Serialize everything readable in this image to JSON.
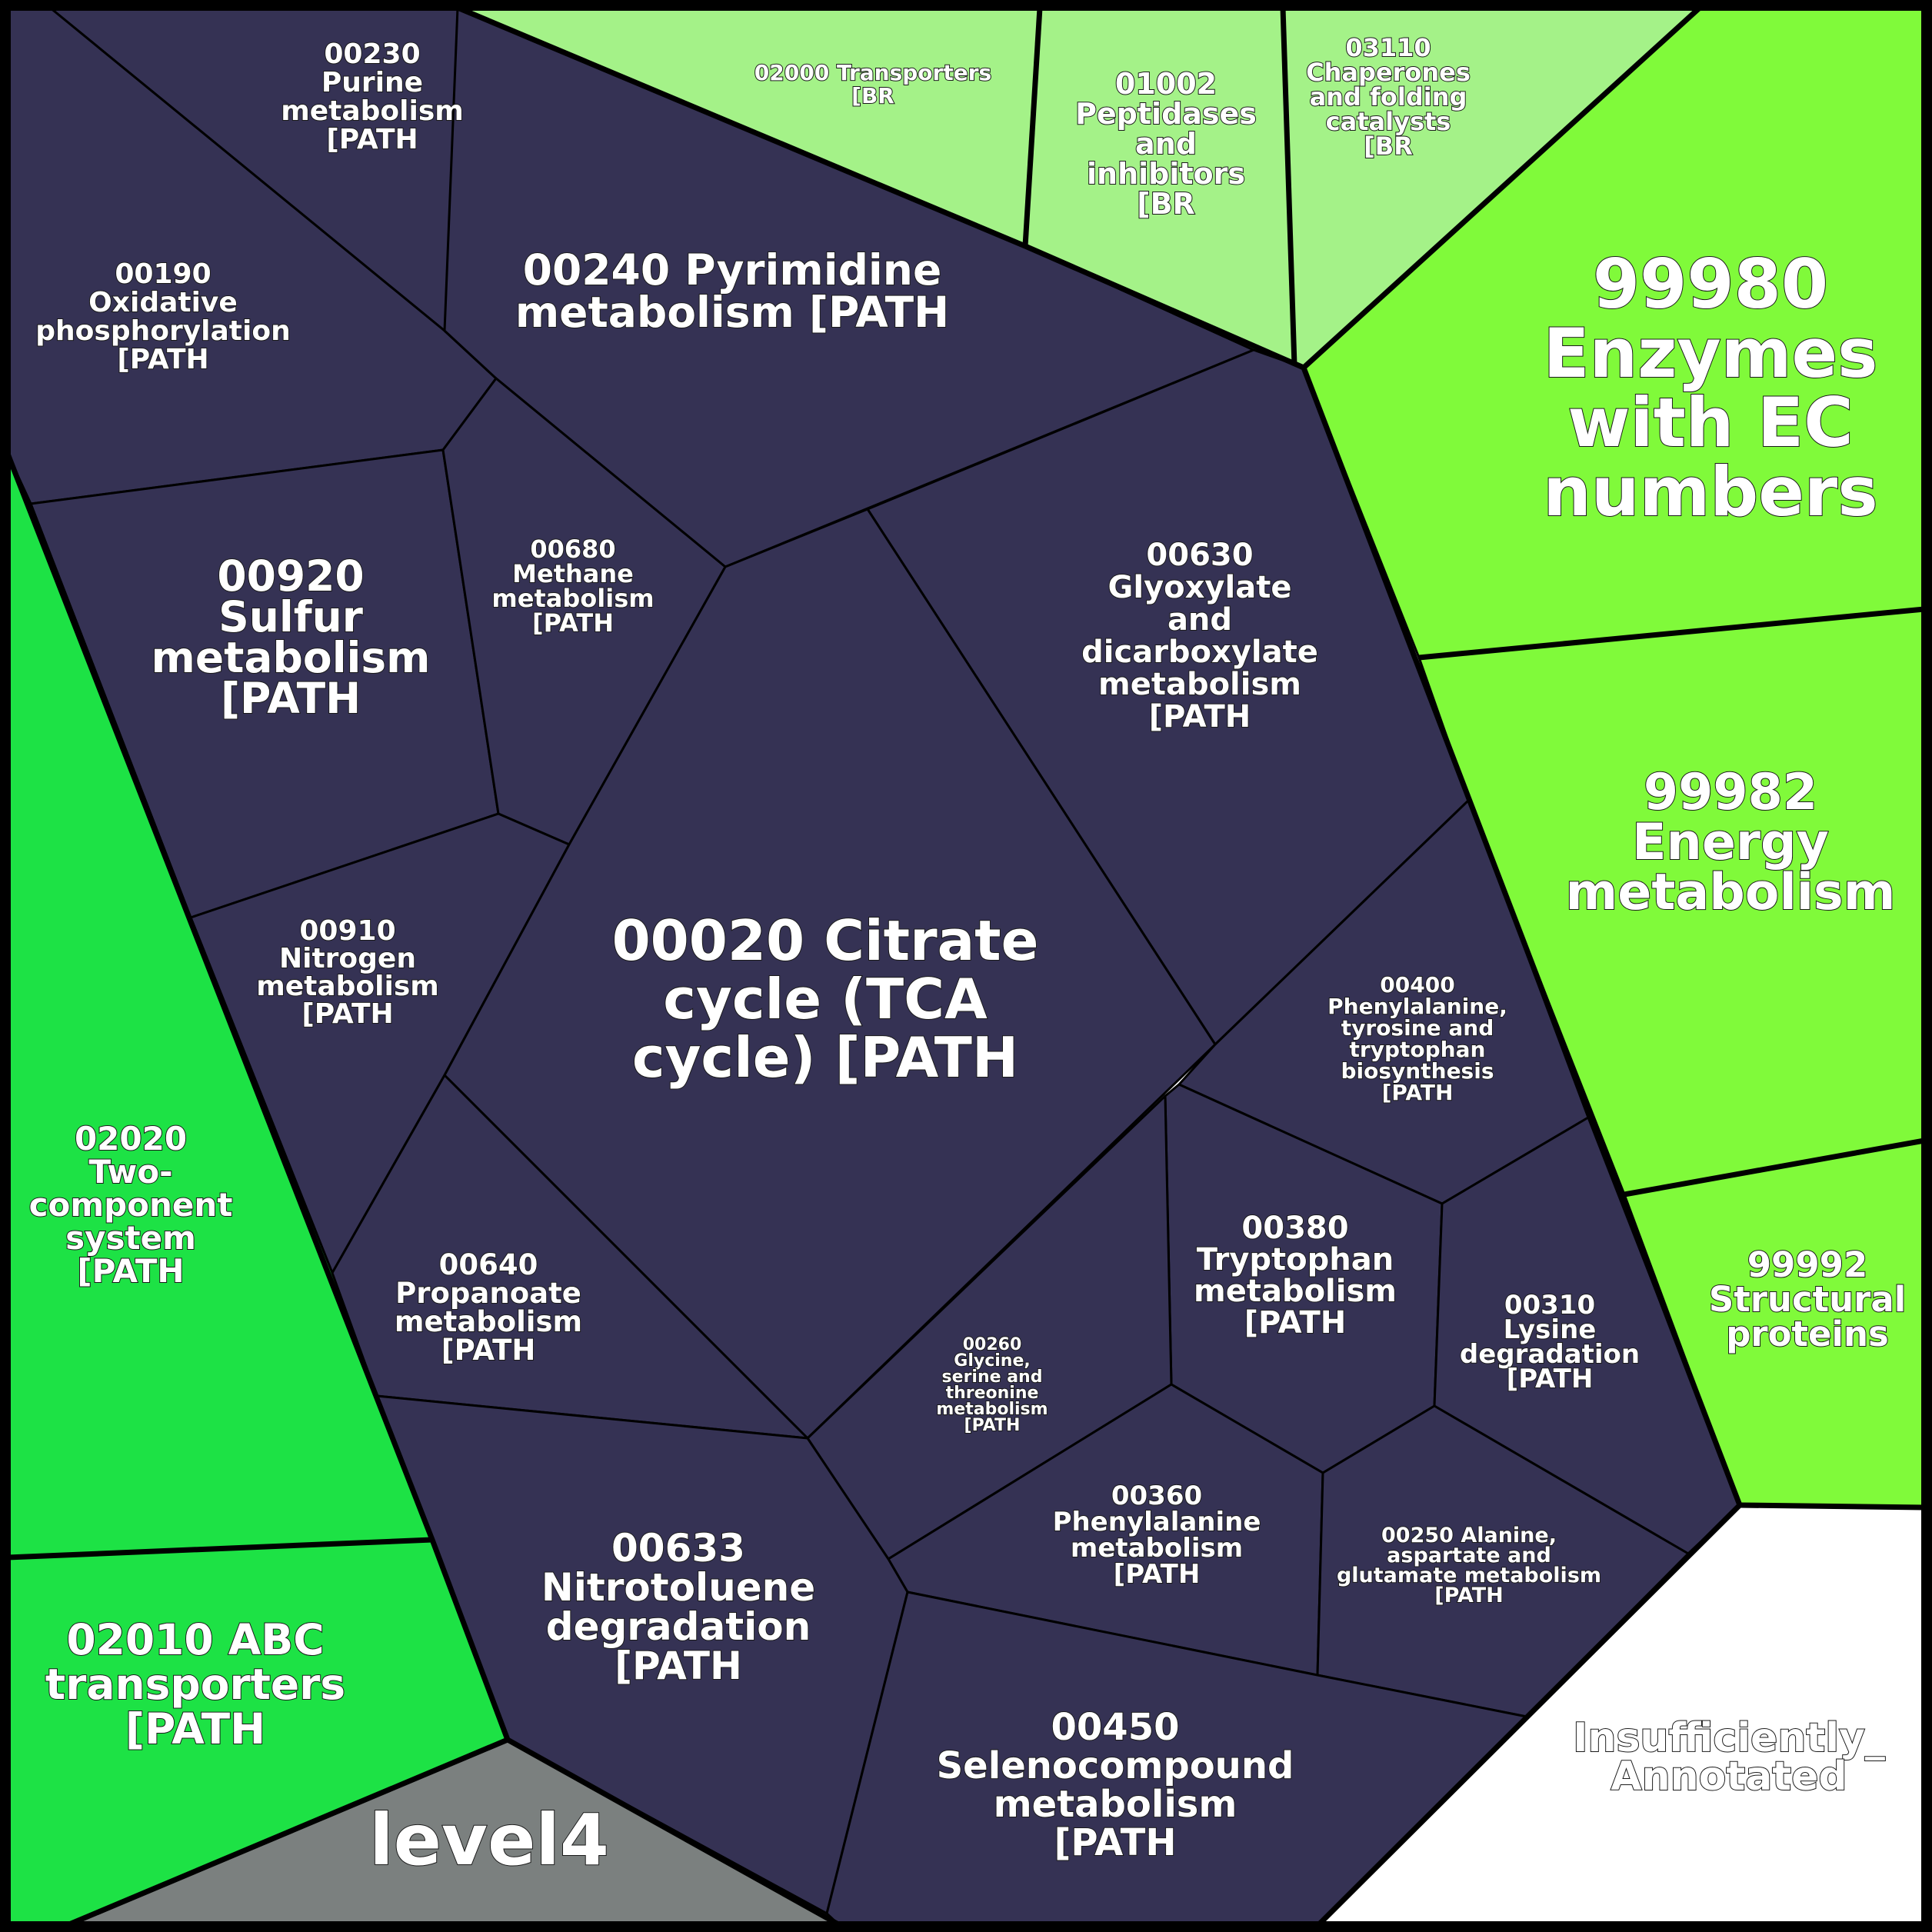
{
  "colors": {
    "pathway": "#353254",
    "brite_light": "#a4f288",
    "enzyme_green": "#80fa3a",
    "bright_green": "#1de245",
    "level4_gray": "#7b807f",
    "unannotated": "#ffffff"
  },
  "cells": [
    {
      "id": "c00230",
      "color": "pathway",
      "lines": [
        "00230",
        "Purine",
        "metabolism",
        "[PATH"
      ]
    },
    {
      "id": "c00190",
      "color": "pathway",
      "lines": [
        "00190",
        "Oxidative",
        "phosphorylation",
        "[PATH"
      ]
    },
    {
      "id": "c00240",
      "color": "pathway",
      "lines": [
        "00240 Pyrimidine",
        "metabolism [PATH"
      ]
    },
    {
      "id": "c02000",
      "color": "brite_light",
      "lines": [
        "02000 Transporters",
        "[BR"
      ]
    },
    {
      "id": "c01002",
      "color": "brite_light",
      "lines": [
        "01002",
        "Peptidases",
        "and",
        "inhibitors",
        "[BR"
      ]
    },
    {
      "id": "c03110",
      "color": "brite_light",
      "lines": [
        "03110",
        "Chaperones",
        "and folding",
        "catalysts",
        "[BR"
      ]
    },
    {
      "id": "c99980",
      "color": "enzyme_green",
      "lines": [
        "99980",
        "Enzymes",
        "with EC",
        "numbers"
      ]
    },
    {
      "id": "c00920",
      "color": "pathway",
      "lines": [
        "00920",
        "Sulfur",
        "metabolism",
        "[PATH"
      ]
    },
    {
      "id": "c00680",
      "color": "pathway",
      "lines": [
        "00680",
        "Methane",
        "metabolism",
        "[PATH"
      ]
    },
    {
      "id": "c00630",
      "color": "pathway",
      "lines": [
        "00630",
        "Glyoxylate",
        "and",
        "dicarboxylate",
        "metabolism",
        "[PATH"
      ]
    },
    {
      "id": "c99982",
      "color": "enzyme_green",
      "lines": [
        "99982",
        "Energy",
        "metabolism"
      ]
    },
    {
      "id": "c00910",
      "color": "pathway",
      "lines": [
        "00910",
        "Nitrogen",
        "metabolism",
        "[PATH"
      ]
    },
    {
      "id": "c00020",
      "color": "pathway",
      "lines": [
        "00020 Citrate",
        "cycle (TCA",
        "cycle) [PATH"
      ]
    },
    {
      "id": "c00400",
      "color": "pathway",
      "lines": [
        "00400",
        "Phenylalanine,",
        "tyrosine and",
        "tryptophan",
        "biosynthesis",
        "[PATH"
      ]
    },
    {
      "id": "c02020",
      "color": "bright_green",
      "lines": [
        "02020",
        "Two-",
        "component",
        "system",
        "[PATH"
      ]
    },
    {
      "id": "c00640",
      "color": "pathway",
      "lines": [
        "00640",
        "Propanoate",
        "metabolism",
        "[PATH"
      ]
    },
    {
      "id": "c00380",
      "color": "pathway",
      "lines": [
        "00380",
        "Tryptophan",
        "metabolism",
        "[PATH"
      ]
    },
    {
      "id": "c00310",
      "color": "pathway",
      "lines": [
        "00310",
        "Lysine",
        "degradation",
        "[PATH"
      ]
    },
    {
      "id": "c99992",
      "color": "enzyme_green",
      "lines": [
        "99992",
        "Structural",
        "proteins"
      ]
    },
    {
      "id": "c00260",
      "color": "pathway",
      "lines": [
        "00260",
        "Glycine,",
        "serine and",
        "threonine",
        "metabolism",
        "[PATH"
      ]
    },
    {
      "id": "c00360",
      "color": "pathway",
      "lines": [
        "00360",
        "Phenylalanine",
        "metabolism",
        "[PATH"
      ]
    },
    {
      "id": "c00250",
      "color": "pathway",
      "lines": [
        "00250 Alanine,",
        "aspartate and",
        "glutamate metabolism",
        "[PATH"
      ]
    },
    {
      "id": "c00633",
      "color": "pathway",
      "lines": [
        "00633",
        "Nitrotoluene",
        "degradation",
        "[PATH"
      ]
    },
    {
      "id": "c02010",
      "color": "bright_green",
      "lines": [
        "02010 ABC",
        "transporters",
        "[PATH"
      ]
    },
    {
      "id": "c00450",
      "color": "pathway",
      "lines": [
        "00450",
        "Selenocompound",
        "metabolism",
        "[PATH"
      ]
    },
    {
      "id": "clevel4",
      "color": "level4_gray",
      "lines": [
        "level4"
      ]
    },
    {
      "id": "cunannot",
      "color": "unannotated",
      "lines": [
        "Insufficiently_",
        "Annotated"
      ]
    }
  ]
}
